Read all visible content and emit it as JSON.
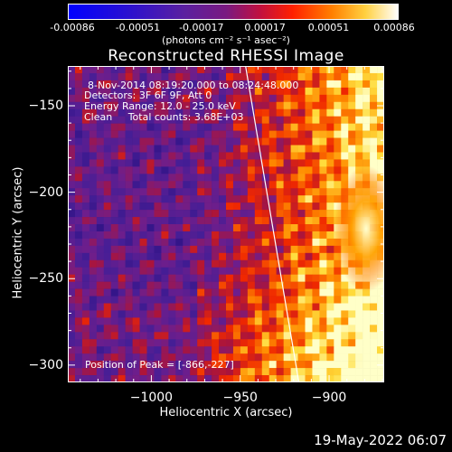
{
  "colorbar": {
    "ticks": [
      "-0.00086",
      "-0.00051",
      "-0.00017",
      "0.00017",
      "0.00051",
      "0.00086"
    ],
    "tick_values": [
      -0.00086,
      -0.00051,
      -0.00017,
      0.00017,
      0.00051,
      0.00086
    ],
    "units": "(photons cm⁻² s⁻¹ asec⁻²)",
    "colors": [
      "#0000ff",
      "#2a00c8",
      "#6a0090",
      "#a00070",
      "#e02000",
      "#ff7000",
      "#ffb000",
      "#ffff80",
      "#ffffff"
    ]
  },
  "title": "Reconstructed RHESSI Image",
  "annotations": {
    "line1": "8-Nov-2014 08:19:20.000 to 08:24:48.000",
    "line2": "Detectors: 3F 6F 9F, Att 0",
    "line3": "Energy Range: 12.0 - 25.0 keV",
    "line4": "Clean     Total counts: 3.68E+03",
    "peak": "Position of Peak = [-866,-227]"
  },
  "footer": "19-May-2022 06:07",
  "chart_data": {
    "type": "heatmap",
    "title": "Reconstructed RHESSI Image",
    "xlabel": "Heliocentric X (arcsec)",
    "ylabel": "Heliocentric Y (arcsec)",
    "xlim": [
      -1047,
      -869
    ],
    "ylim": [
      -310,
      -127
    ],
    "xticks": [
      -1000,
      -950,
      -900
    ],
    "xtick_labels": [
      "−1000",
      "−950",
      "−900"
    ],
    "yticks": [
      -150,
      -200,
      -250,
      -300
    ],
    "ytick_labels": [
      "−150",
      "−200",
      "−250",
      "−300"
    ],
    "colorbar_range": [
      -0.00086,
      0.00086
    ],
    "peak_position": [
      -866,
      -227
    ],
    "limb_line": [
      [
        -947,
        -127
      ],
      [
        -917,
        -310
      ]
    ]
  }
}
